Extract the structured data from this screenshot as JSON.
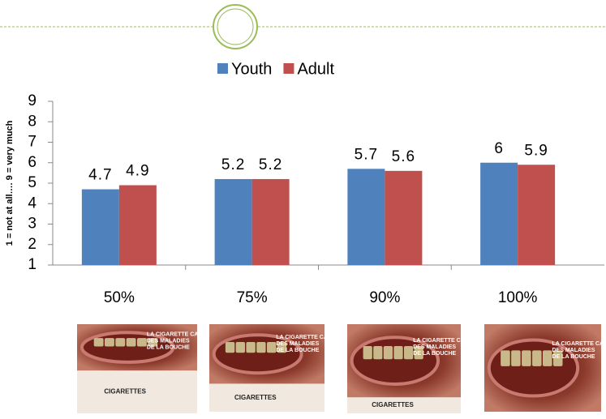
{
  "chart_data": {
    "type": "bar",
    "y_label": "1 = not at all…. 9 = very much",
    "categories": [
      "50%",
      "75%",
      "90%",
      "100%"
    ],
    "series": [
      {
        "name": "Youth",
        "color": "#4f81bd",
        "values": [
          4.7,
          5.2,
          5.7,
          6
        ]
      },
      {
        "name": "Adult",
        "color": "#c0504d",
        "values": [
          4.9,
          5.2,
          5.6,
          5.9
        ]
      }
    ],
    "ylim": [
      1,
      9
    ],
    "yticks": [
      1,
      2,
      3,
      4,
      5,
      6,
      7,
      8,
      9
    ],
    "grid": false,
    "legend": "top"
  },
  "images": [
    {
      "warning": "LA CIGARETTE CAUSE DES MALADIES DE LA BOUCHE",
      "brand": "CIGARETTES"
    },
    {
      "warning": "LA CIGARETTE CAUSE DES MALADIES DE LA BOUCHE",
      "brand": "CIGARETTES"
    },
    {
      "warning": "LA CIGARETTE CAUSE DES MALADIES DE LA BOUCHE",
      "brand": "CIGARETTES"
    },
    {
      "warning": "LA CIGARETTE CAUSE DES MALADIES DE LA BOUCHE"
    }
  ]
}
